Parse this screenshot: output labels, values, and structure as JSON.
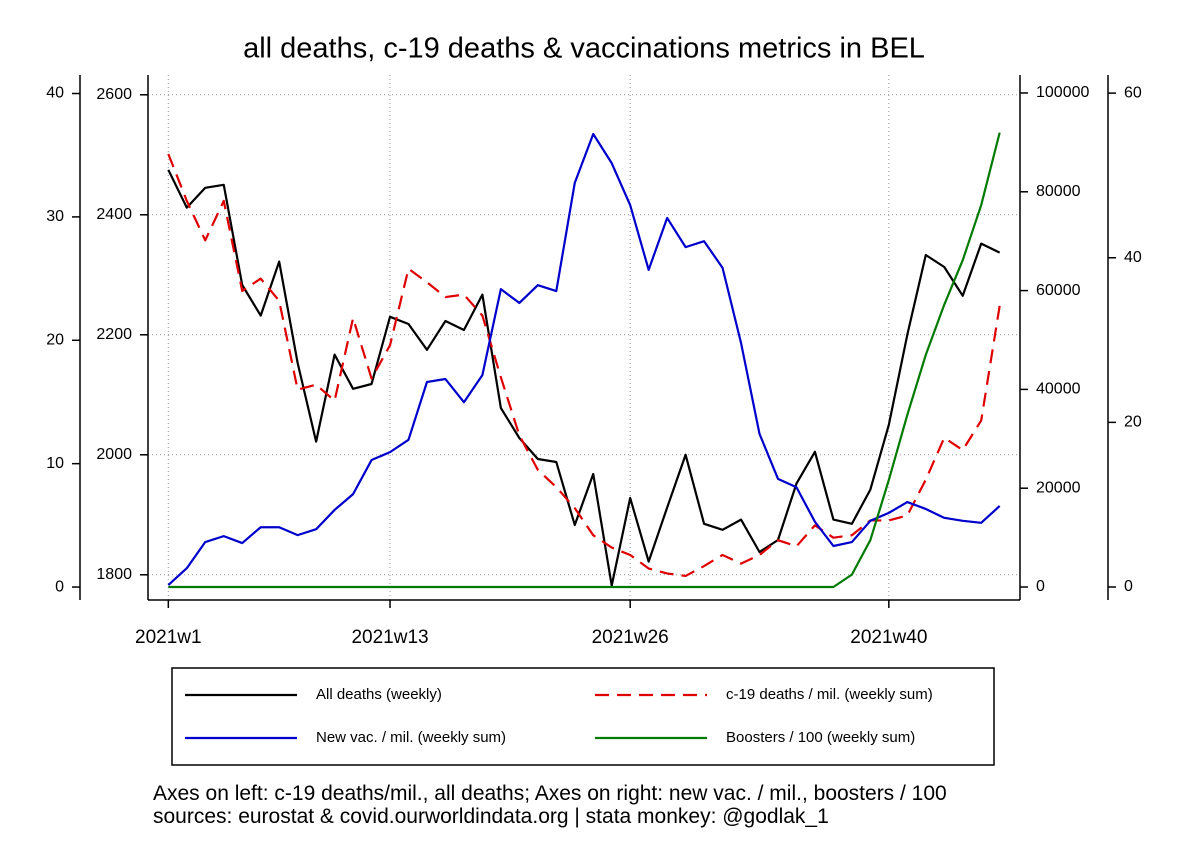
{
  "chart_data": {
    "type": "line",
    "title": "all deaths, c-19 deaths & vaccinations metrics in BEL",
    "notes": [
      "Axes on left: c-19 deaths/mil., all deaths; Axes on right: new vac. / mil., boosters / 100",
      "sources: eurostat & covid.ourworldindata.org | stata monkey: @godlak_1"
    ],
    "x": [
      1,
      2,
      3,
      4,
      5,
      6,
      7,
      8,
      9,
      10,
      11,
      12,
      13,
      14,
      15,
      16,
      17,
      18,
      19,
      20,
      21,
      22,
      23,
      24,
      25,
      26,
      27,
      28,
      29,
      30,
      31,
      32,
      33,
      34,
      35,
      36,
      37,
      38,
      39,
      40,
      41,
      42,
      43,
      44,
      45,
      46
    ],
    "xlim": [
      -0.1,
      47.1
    ],
    "xticks": [
      {
        "value": 1,
        "label": "2021w1"
      },
      {
        "value": 13,
        "label": "2021w13"
      },
      {
        "value": 26,
        "label": "2021w26"
      },
      {
        "value": 40,
        "label": "2021w40"
      }
    ],
    "ylim": [
      1758,
      2633
    ],
    "yticks": [
      1800,
      2000,
      2200,
      2400,
      2600
    ],
    "y3lim": [
      -1.05,
      41.5
    ],
    "y3ticks": [
      0,
      10,
      20,
      30,
      40
    ],
    "y2lim": [
      -2630,
      103640
    ],
    "y2ticks": [
      0,
      20000,
      40000,
      60000,
      80000,
      100000
    ],
    "y4lim": [
      -1.58,
      62.2
    ],
    "y4ticks": [
      0,
      20,
      40,
      60
    ],
    "grid": true,
    "series": [
      {
        "name": "All deaths (weekly)",
        "color": "#000000",
        "style": "solid",
        "axis": "y",
        "values": [
          2475,
          2412,
          2445,
          2450,
          2283,
          2232,
          2322,
          2153,
          2022,
          2167,
          2110,
          2118,
          2230,
          2218,
          2175,
          2223,
          2208,
          2267,
          2078,
          2028,
          1993,
          1988,
          1883,
          1968,
          1782,
          1928,
          1822,
          1912,
          2000,
          1885,
          1875,
          1892,
          1838,
          1858,
          1952,
          2005,
          1892,
          1885,
          1942,
          2050,
          2200,
          2333,
          2313,
          2265,
          2352,
          2337
        ]
      },
      {
        "name": "c-19 deaths / mil. (weekly sum)",
        "color": "#e00000",
        "style": "dashed",
        "axis": "y3",
        "values": [
          35.1,
          31.3,
          28.1,
          31.3,
          24.0,
          25.0,
          23.2,
          16.0,
          16.4,
          15.1,
          21.8,
          16.9,
          19.6,
          25.8,
          24.7,
          23.5,
          23.7,
          22.0,
          17.0,
          12.3,
          9.5,
          8.1,
          6.4,
          4.2,
          3.2,
          2.6,
          1.5,
          1.1,
          0.9,
          1.7,
          2.6,
          1.9,
          2.6,
          3.8,
          3.3,
          5.0,
          4.0,
          4.2,
          5.4,
          5.4,
          5.8,
          8.7,
          12.1,
          11.1,
          13.5,
          22.8
        ]
      },
      {
        "name": "New vac. / mil. (weekly sum)",
        "color": "#0000cc",
        "style": "solid",
        "axis": "y2",
        "values": [
          400,
          3800,
          9100,
          10300,
          8900,
          12100,
          12100,
          10500,
          11700,
          15600,
          18800,
          25700,
          27300,
          29800,
          41500,
          42100,
          37400,
          42900,
          60300,
          57500,
          61100,
          59900,
          81800,
          91700,
          85800,
          77300,
          64200,
          74700,
          68800,
          70000,
          64600,
          49400,
          31000,
          21900,
          20200,
          13200,
          8300,
          9100,
          13400,
          15000,
          17200,
          15800,
          14000,
          13400,
          13000,
          16400
        ]
      },
      {
        "name": "Boosters / 100 (weekly sum)",
        "color": "#007a00",
        "style": "solid",
        "axis": "y4",
        "values": [
          0,
          0,
          0,
          0,
          0,
          0,
          0,
          0,
          0,
          0,
          0,
          0,
          0,
          0,
          0,
          0,
          0,
          0,
          0,
          0,
          0,
          0,
          0,
          0,
          0,
          0,
          0,
          0,
          0,
          0,
          0,
          0,
          0,
          0,
          0,
          0,
          0,
          1.5,
          5.7,
          13.0,
          20.9,
          28.2,
          34.3,
          39.7,
          46.4,
          55.2
        ]
      }
    ]
  }
}
